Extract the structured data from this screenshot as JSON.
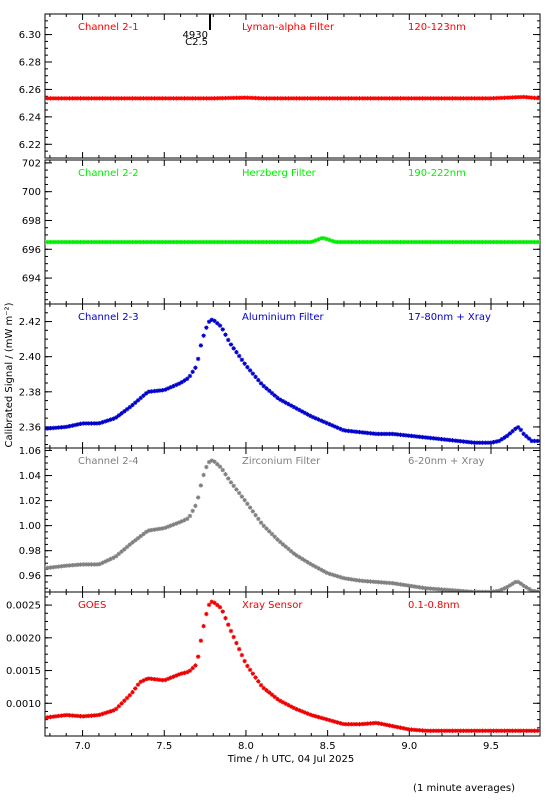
{
  "chart_data": {
    "type": "scatter",
    "xlabel": "Time / h UTC, 04 Jul 2025",
    "ylabel": "Calibrated Signal / (mW m⁻²)",
    "footnote": "(1 minute averages)",
    "xlim": [
      6.77,
      9.8
    ],
    "xticks": [
      "7.0",
      "7.5",
      "8.0",
      "8.5",
      "9.0",
      "9.5"
    ],
    "xtick_values": [
      7.0,
      7.5,
      8.0,
      8.5,
      9.0,
      9.5
    ],
    "marker": "asterisk",
    "panels": [
      {
        "channel": "Channel 2-1",
        "filter": "Lyman-alpha Filter",
        "band": "120-123nm",
        "color": "#ff0000",
        "ylim": [
          6.21,
          6.315
        ],
        "yticks": [
          "6.22",
          "6.24",
          "6.26",
          "6.28",
          "6.30"
        ],
        "ytick_values": [
          6.22,
          6.24,
          6.26,
          6.28,
          6.3
        ],
        "flare_marker": {
          "x": 7.78,
          "label_top": "4930",
          "label_bottom": "C2.5"
        },
        "x": [
          6.77,
          7.0,
          7.5,
          7.8,
          8.0,
          8.1,
          8.5,
          9.0,
          9.5,
          9.6,
          9.7,
          9.75,
          9.8
        ],
        "y": [
          6.2535,
          6.2535,
          6.2535,
          6.2535,
          6.254,
          6.2535,
          6.2535,
          6.2535,
          6.2535,
          6.254,
          6.2545,
          6.254,
          6.2535
        ]
      },
      {
        "channel": "Channel 2-2",
        "filter": "Herzberg Filter",
        "band": "190-222nm",
        "color": "#00ee00",
        "ylim": [
          692.2,
          702.2
        ],
        "yticks": [
          "694",
          "696",
          "698",
          "700",
          "702"
        ],
        "ytick_values": [
          694,
          696,
          698,
          700,
          702
        ],
        "x": [
          6.77,
          7.0,
          7.5,
          8.0,
          8.4,
          8.47,
          8.55,
          9.0,
          9.5,
          9.8
        ],
        "y": [
          696.5,
          696.5,
          696.5,
          696.5,
          696.5,
          696.8,
          696.5,
          696.5,
          696.5,
          696.5
        ]
      },
      {
        "channel": "Channel 2-3",
        "filter": "Aluminium Filter",
        "band": "17-80nm + Xray",
        "color": "#0000cc",
        "ylim": [
          2.348,
          2.43
        ],
        "yticks": [
          "2.36",
          "2.38",
          "2.40",
          "2.42"
        ],
        "ytick_values": [
          2.36,
          2.38,
          2.4,
          2.42
        ],
        "x": [
          6.77,
          6.9,
          7.0,
          7.1,
          7.2,
          7.3,
          7.4,
          7.5,
          7.6,
          7.65,
          7.7,
          7.72,
          7.75,
          7.78,
          7.8,
          7.85,
          7.9,
          8.0,
          8.1,
          8.2,
          8.3,
          8.4,
          8.5,
          8.6,
          8.7,
          8.8,
          8.9,
          9.0,
          9.1,
          9.2,
          9.3,
          9.4,
          9.5,
          9.55,
          9.6,
          9.65,
          9.67,
          9.7,
          9.75,
          9.8
        ],
        "y": [
          2.359,
          2.36,
          2.362,
          2.362,
          2.365,
          2.372,
          2.38,
          2.381,
          2.385,
          2.388,
          2.395,
          2.405,
          2.415,
          2.421,
          2.421,
          2.417,
          2.408,
          2.395,
          2.384,
          2.376,
          2.371,
          2.366,
          2.362,
          2.358,
          2.357,
          2.356,
          2.356,
          2.355,
          2.354,
          2.353,
          2.352,
          2.351,
          2.351,
          2.352,
          2.355,
          2.359,
          2.36,
          2.356,
          2.352,
          2.352
        ]
      },
      {
        "channel": "Channel 2-4",
        "filter": "Zirconium Filter",
        "band": "6-20nm + Xray",
        "color": "#808080",
        "ylim": [
          0.947,
          1.062
        ],
        "yticks": [
          "0.96",
          "0.98",
          "1.00",
          "1.02",
          "1.04",
          "1.06"
        ],
        "ytick_values": [
          0.96,
          0.98,
          1.0,
          1.02,
          1.04,
          1.06
        ],
        "x": [
          6.77,
          6.9,
          7.0,
          7.1,
          7.2,
          7.3,
          7.4,
          7.5,
          7.6,
          7.65,
          7.7,
          7.72,
          7.75,
          7.78,
          7.8,
          7.85,
          7.9,
          8.0,
          8.1,
          8.2,
          8.3,
          8.4,
          8.5,
          8.6,
          8.7,
          8.8,
          8.9,
          9.0,
          9.1,
          9.2,
          9.3,
          9.4,
          9.5,
          9.55,
          9.6,
          9.65,
          9.67,
          9.7,
          9.75,
          9.8
        ],
        "y": [
          0.966,
          0.968,
          0.969,
          0.969,
          0.975,
          0.986,
          0.996,
          0.998,
          1.003,
          1.006,
          1.018,
          1.03,
          1.045,
          1.052,
          1.052,
          1.046,
          1.036,
          1.019,
          1.001,
          0.988,
          0.977,
          0.969,
          0.962,
          0.958,
          0.956,
          0.955,
          0.954,
          0.952,
          0.95,
          0.949,
          0.948,
          0.947,
          0.947,
          0.948,
          0.951,
          0.955,
          0.955,
          0.952,
          0.948,
          0.947
        ]
      },
      {
        "channel": "GOES",
        "filter": "Xray Sensor",
        "band": "0.1-0.8nm",
        "color": "#ee0000",
        "ylim": [
          0.0005,
          0.0027
        ],
        "yticks": [
          "0.0010",
          "0.0015",
          "0.0020",
          "0.0025"
        ],
        "ytick_values": [
          0.001,
          0.0015,
          0.002,
          0.0025
        ],
        "x": [
          6.77,
          6.9,
          7.0,
          7.1,
          7.2,
          7.3,
          7.35,
          7.4,
          7.5,
          7.6,
          7.65,
          7.7,
          7.72,
          7.75,
          7.78,
          7.8,
          7.85,
          7.9,
          8.0,
          8.1,
          8.2,
          8.3,
          8.4,
          8.5,
          8.6,
          8.7,
          8.8,
          8.9,
          9.0,
          9.1,
          9.2,
          9.3,
          9.4,
          9.5,
          9.6,
          9.7,
          9.8
        ],
        "y": [
          0.00078,
          0.00082,
          0.0008,
          0.00082,
          0.0009,
          0.00115,
          0.00132,
          0.00138,
          0.00135,
          0.00145,
          0.00148,
          0.0016,
          0.0019,
          0.0023,
          0.00255,
          0.00255,
          0.00245,
          0.00215,
          0.0016,
          0.00125,
          0.00105,
          0.00092,
          0.00082,
          0.00075,
          0.00068,
          0.00068,
          0.0007,
          0.00065,
          0.0006,
          0.00058,
          0.00058,
          0.00058,
          0.00058,
          0.00058,
          0.00058,
          0.00058,
          0.00058
        ]
      }
    ]
  }
}
